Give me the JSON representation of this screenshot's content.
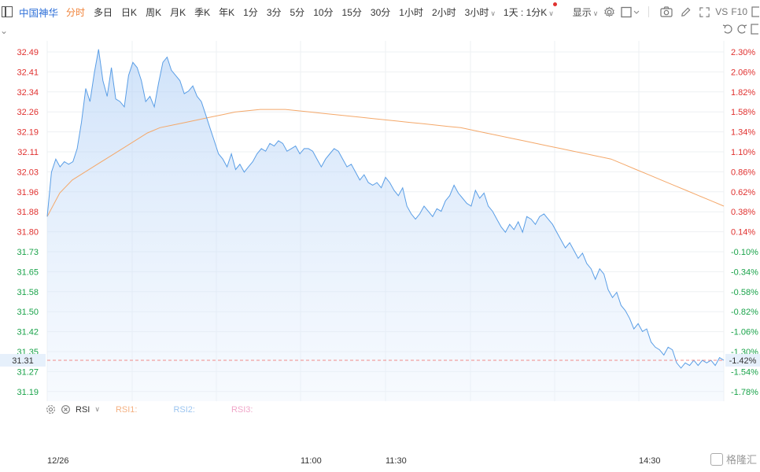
{
  "toolbar": {
    "stock_name": "中国神华",
    "timeframes": [
      {
        "label": "分时",
        "active": true
      },
      {
        "label": "多日"
      },
      {
        "label": "日K"
      },
      {
        "label": "周K"
      },
      {
        "label": "月K"
      },
      {
        "label": "季K"
      },
      {
        "label": "年K"
      },
      {
        "label": "1分"
      },
      {
        "label": "3分"
      },
      {
        "label": "5分"
      },
      {
        "label": "10分"
      },
      {
        "label": "15分"
      },
      {
        "label": "30分"
      },
      {
        "label": "1小时"
      },
      {
        "label": "2小时"
      }
    ],
    "dropdown_3h": "3小时",
    "dropdown_period": "1天 : 1分K",
    "display_label": "显示",
    "vs_label": "VS",
    "f10_label": "F10"
  },
  "chart_data": {
    "type": "line",
    "x_ticks": [
      "12/26",
      "11:00",
      "11:30",
      "14:30"
    ],
    "y_ticks_price": [
      "32.49",
      "32.41",
      "32.34",
      "32.26",
      "32.19",
      "32.11",
      "32.03",
      "31.96",
      "31.88",
      "31.80",
      "31.73",
      "31.65",
      "31.58",
      "31.50",
      "31.42",
      "31.35",
      "31.27",
      "31.19"
    ],
    "y_ticks_pct": [
      "2.30%",
      "2.06%",
      "1.82%",
      "1.58%",
      "1.34%",
      "1.10%",
      "0.86%",
      "0.62%",
      "0.38%",
      "0.14%",
      "-0.10%",
      "-0.34%",
      "-0.58%",
      "-0.82%",
      "-1.06%",
      "-1.30%",
      "-1.54%",
      "-1.78%"
    ],
    "current_price": "31.31",
    "current_pct": "-1.42%",
    "ylim": [
      31.19,
      32.49
    ],
    "series": [
      {
        "color": "#5a9ee6",
        "values": [
          31.86,
          32.03,
          32.08,
          32.05,
          32.07,
          32.06,
          32.07,
          32.12,
          32.22,
          32.35,
          32.3,
          32.41,
          32.5,
          32.38,
          32.32,
          32.43,
          32.31,
          32.3,
          32.28,
          32.4,
          32.45,
          32.43,
          32.38,
          32.3,
          32.32,
          32.28,
          32.37,
          32.45,
          32.47,
          32.42,
          32.4,
          32.38,
          32.33,
          32.34,
          32.36,
          32.32,
          32.3,
          32.25,
          32.2,
          32.15,
          32.1,
          32.08,
          32.05,
          32.1,
          32.04,
          32.06,
          32.03,
          32.05,
          32.07,
          32.1,
          32.12,
          32.11,
          32.14,
          32.13,
          32.15,
          32.14,
          32.11,
          32.12,
          32.13,
          32.1,
          32.12,
          32.12,
          32.11,
          32.08,
          32.05,
          32.08,
          32.1,
          32.12,
          32.11,
          32.08,
          32.05,
          32.06,
          32.03,
          32.0,
          32.02,
          31.99,
          31.98,
          31.99,
          31.97,
          32.01,
          31.99,
          31.96,
          31.94,
          31.97,
          31.9,
          31.87,
          31.85,
          31.87,
          31.9,
          31.88,
          31.86,
          31.89,
          31.88,
          31.92,
          31.94,
          31.98,
          31.95,
          31.93,
          31.91,
          31.9,
          31.96,
          31.93,
          31.95,
          31.9,
          31.88,
          31.85,
          31.82,
          31.8,
          31.83,
          31.81,
          31.84,
          31.8,
          31.86,
          31.85,
          31.83,
          31.86,
          31.87,
          31.85,
          31.83,
          31.8,
          31.77,
          31.74,
          31.76,
          31.73,
          31.7,
          31.72,
          31.68,
          31.66,
          31.62,
          31.66,
          31.64,
          31.58,
          31.55,
          31.57,
          31.52,
          31.5,
          31.47,
          31.43,
          31.45,
          31.42,
          31.43,
          31.38,
          31.36,
          31.35,
          31.33,
          31.36,
          31.35,
          31.3,
          31.28,
          31.3,
          31.29,
          31.31,
          31.29,
          31.31,
          31.3,
          31.31,
          31.29,
          31.32,
          31.31
        ]
      },
      {
        "color": "#f4a86a",
        "values": [
          31.86,
          31.95,
          32.0,
          32.03,
          32.06,
          32.09,
          32.12,
          32.15,
          32.18,
          32.2,
          32.21,
          32.22,
          32.23,
          32.24,
          32.25,
          32.26,
          32.265,
          32.27,
          32.27,
          32.27,
          32.265,
          32.26,
          32.255,
          32.25,
          32.245,
          32.24,
          32.235,
          32.23,
          32.225,
          32.22,
          32.215,
          32.21,
          32.205,
          32.2,
          32.19,
          32.18,
          32.17,
          32.16,
          32.15,
          32.14,
          32.13,
          32.12,
          32.11,
          32.1,
          32.09,
          32.08,
          32.06,
          32.04,
          32.02,
          32.0,
          31.98,
          31.96,
          31.94,
          31.92,
          31.9
        ]
      }
    ]
  },
  "rsi": {
    "label": "RSI",
    "rsi1": "RSI1:",
    "rsi2": "RSI2:",
    "rsi3": "RSI3:"
  },
  "watermark": {
    "text": "格隆汇"
  },
  "colors": {
    "accent": "#2d6fd8",
    "active_tf": "#f0833a",
    "up": "#e0312f",
    "down": "#1aa34a",
    "price_line": "#5a9ee6",
    "avg_line": "#f4a86a"
  }
}
